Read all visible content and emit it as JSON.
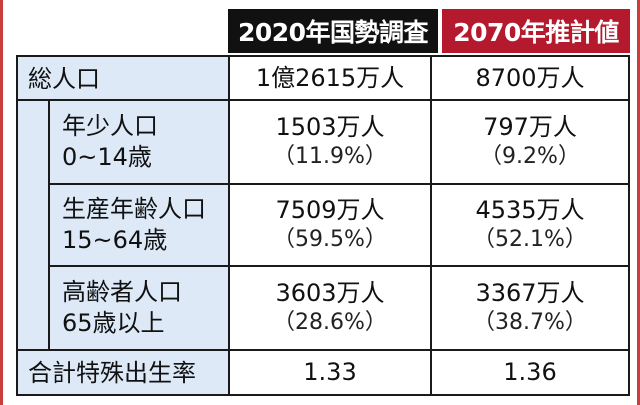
{
  "header": {
    "col_2020": "2020年国勢調査",
    "col_2070": "2070年推計値"
  },
  "rows": {
    "total": {
      "label": "総人口",
      "v2020": "1億2615万人",
      "v2070": "8700万人"
    },
    "youth": {
      "label": "年少人口",
      "range": "0~14歳",
      "v2020": "1503万人",
      "p2020": "（11.9%）",
      "v2070": "797万人",
      "p2070": "（9.2%）"
    },
    "working": {
      "label": "生産年齢人口",
      "range": "15~64歳",
      "v2020": "7509万人",
      "p2020": "（59.5%）",
      "v2070": "4535万人",
      "p2070": "（52.1%）"
    },
    "elderly": {
      "label": "高齢者人口",
      "range": "65歳以上",
      "v2020": "3603万人",
      "p2020": "（28.6%）",
      "v2070": "3367万人",
      "p2070": "（38.7%）"
    },
    "fertility": {
      "label": "合計特殊出生率",
      "v2020": "1.33",
      "v2070": "1.36"
    }
  },
  "colors": {
    "header_2020_bg": "#111111",
    "header_2070_bg": "#b5192d",
    "label_shade": "#dde9f7"
  }
}
